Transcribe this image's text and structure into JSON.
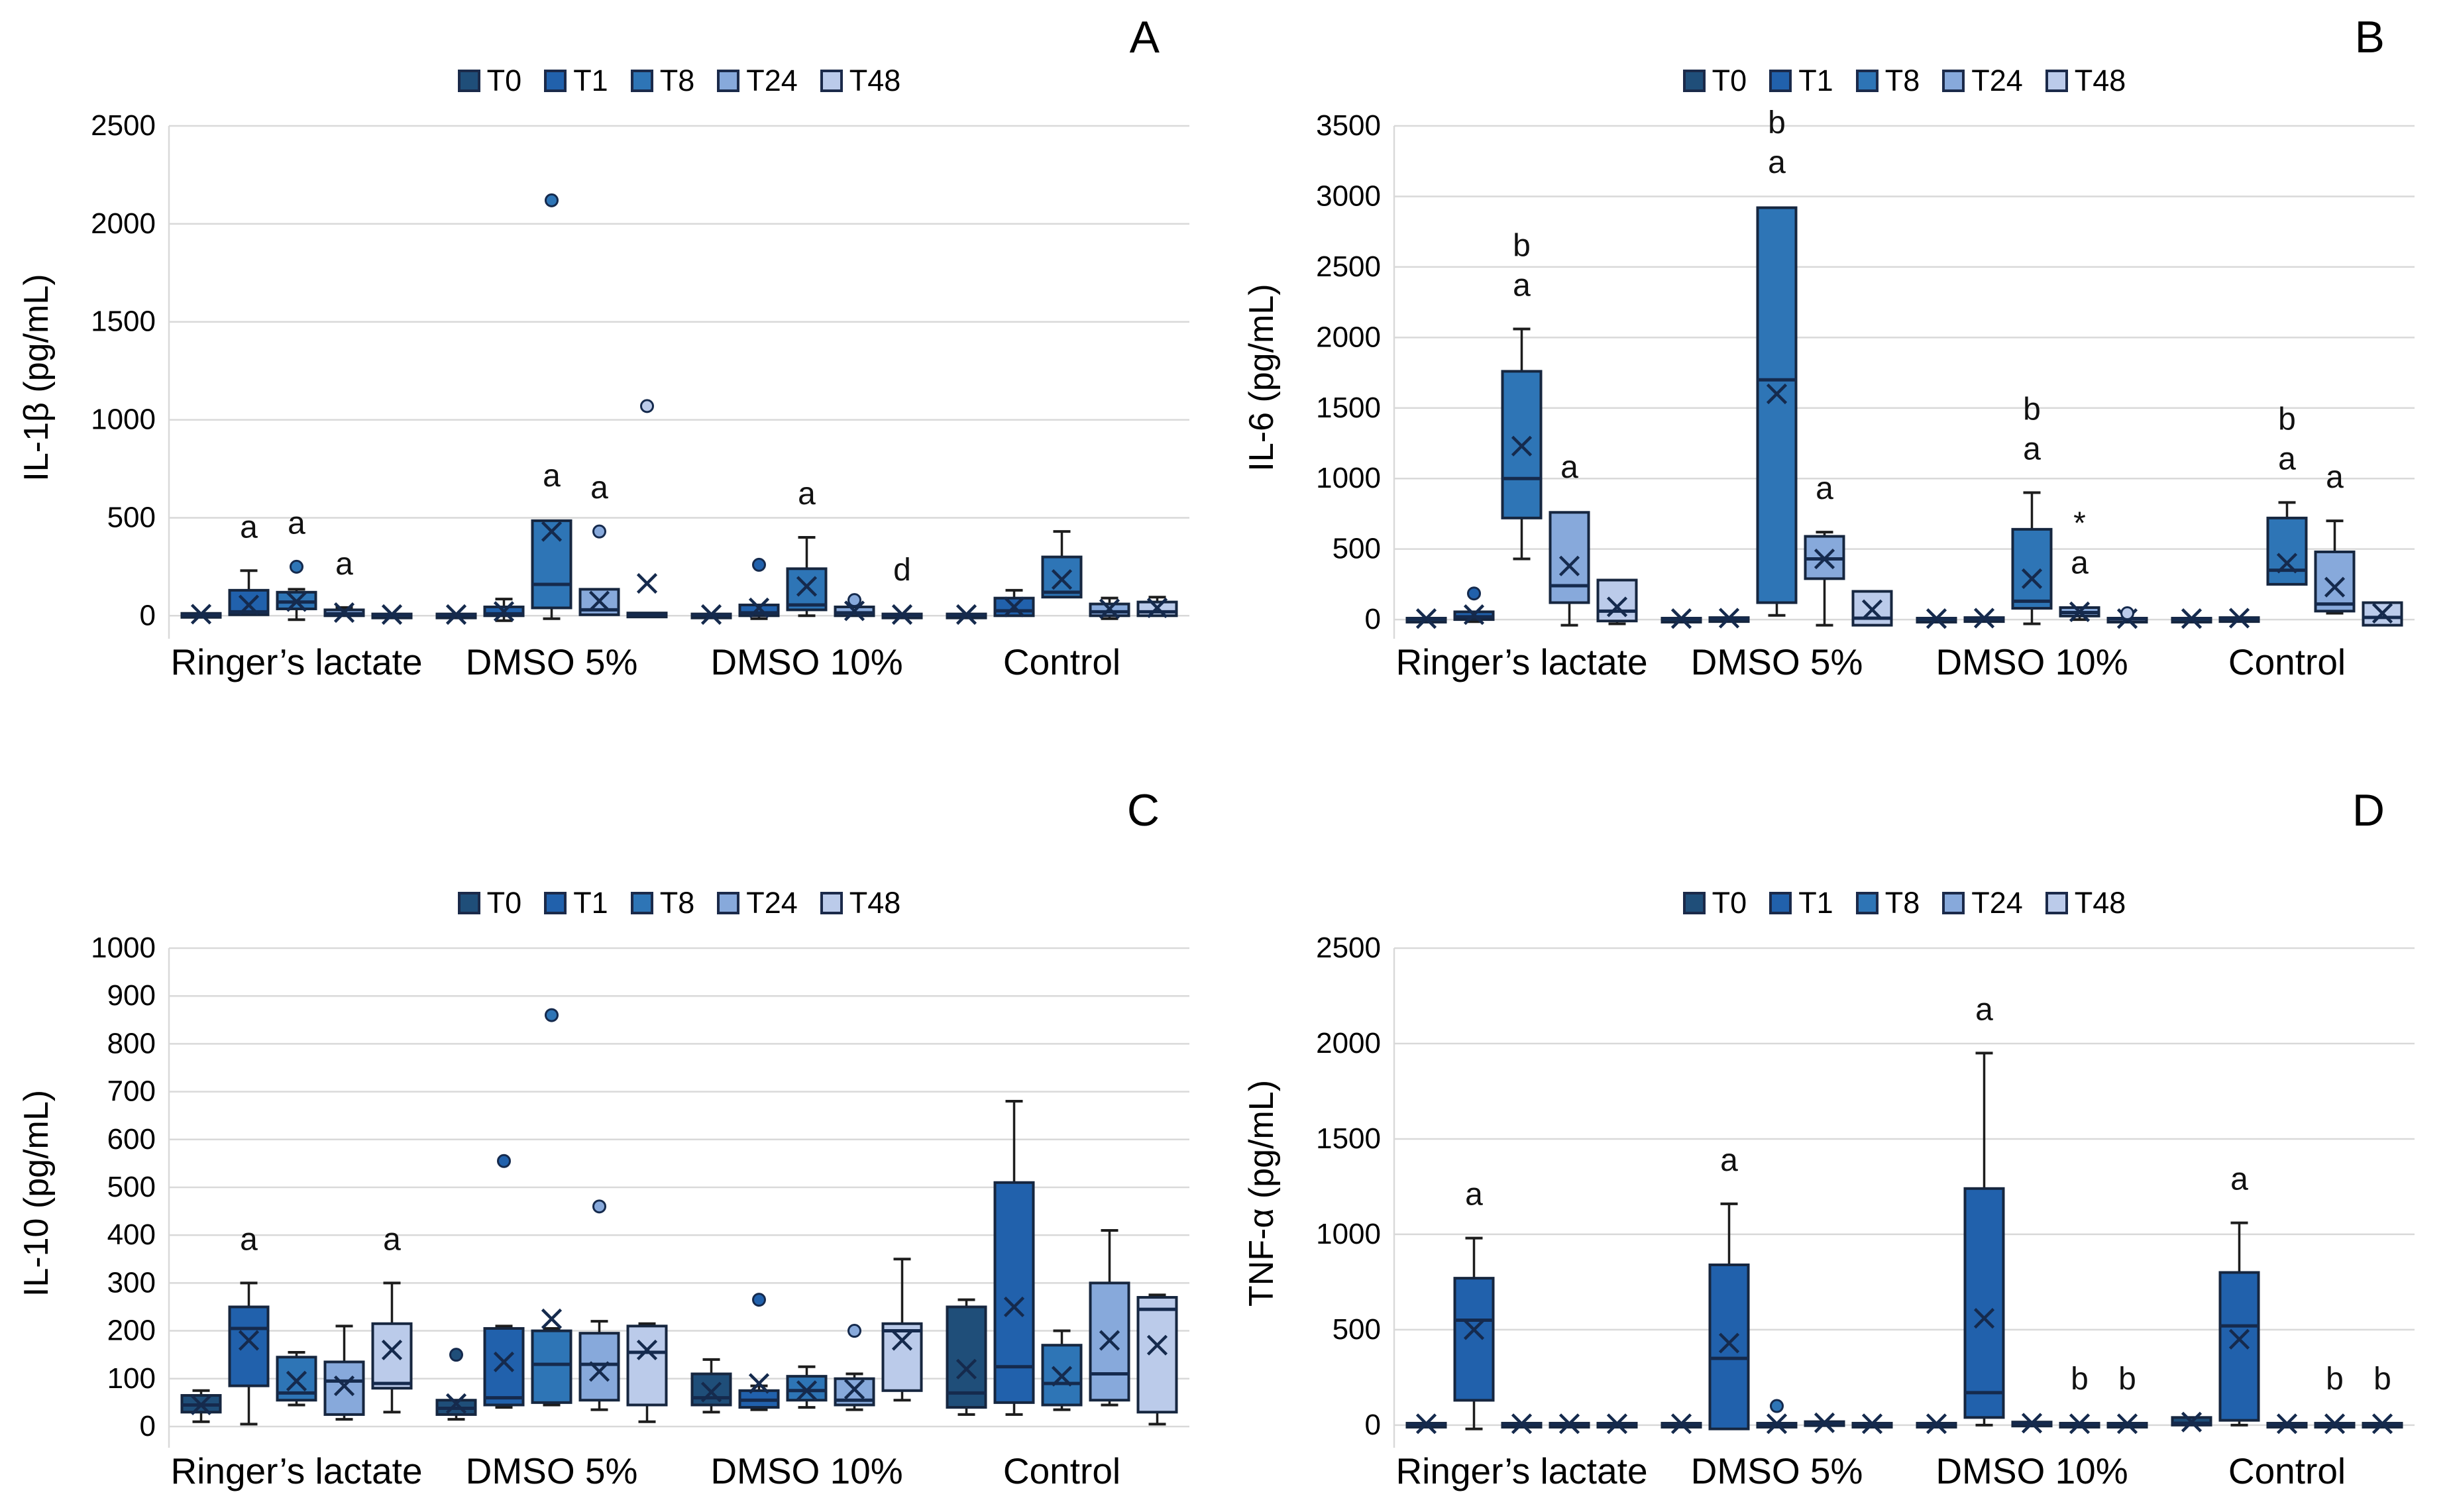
{
  "figure": {
    "background": "#ffffff"
  },
  "legend": {
    "series": [
      "T0",
      "T1",
      "T8",
      "T24",
      "T48"
    ],
    "colors": [
      "#1F4E79",
      "#2161AC",
      "#2E75B6",
      "#87A9DB",
      "#BBCBEA"
    ],
    "border_color": "#1B2A4A",
    "marker_color": "#152A4D",
    "gridline_color": "#D9D9D9"
  },
  "chart_data": {
    "type": "box",
    "groups": [
      "Ringer’s lactate",
      "DMSO 5%",
      "DMSO 10%",
      "Control"
    ],
    "series": [
      "T0",
      "T1",
      "T8",
      "T24",
      "T48"
    ],
    "box_format": [
      "whisker_low",
      "q1",
      "median",
      "q3",
      "whisker_high",
      "mean",
      "outliers",
      "labels"
    ],
    "panels": [
      {
        "letter": "A",
        "ylabel": "IL-1β (pg/mL)",
        "ylim": [
          0,
          2500
        ],
        "ytick": 500,
        "boxes": [
          [
            [
              0,
              0,
              4,
              12,
              18,
              8,
              [],
              []
            ],
            [
              0,
              5,
              20,
              130,
              230,
              55,
              [],
              [
                "a"
              ]
            ],
            [
              -20,
              35,
              70,
              120,
              135,
              72,
              [
                250
              ],
              [
                "a"
              ]
            ],
            [
              0,
              0,
              10,
              30,
              42,
              16,
              [],
              [
                "a"
              ]
            ],
            [
              0,
              0,
              3,
              9,
              12,
              6,
              [],
              []
            ]
          ],
          [
            [
              0,
              0,
              3,
              9,
              12,
              6,
              [],
              []
            ],
            [
              -25,
              0,
              10,
              45,
              85,
              22,
              [],
              []
            ],
            [
              -15,
              40,
              160,
              485,
              492,
              430,
              [
                2120
              ],
              [
                "a"
              ]
            ],
            [
              0,
              5,
              30,
              135,
              142,
              75,
              [
                430
              ],
              [
                "a"
              ]
            ],
            [
              0,
              0,
              5,
              14,
              18,
              165,
              [
                1070
              ],
              []
            ]
          ],
          [
            [
              0,
              0,
              3,
              9,
              12,
              6,
              [],
              []
            ],
            [
              -15,
              0,
              15,
              55,
              62,
              40,
              [
                260
              ],
              []
            ],
            [
              0,
              30,
              55,
              240,
              400,
              150,
              [],
              [
                "a"
              ]
            ],
            [
              -10,
              0,
              15,
              45,
              52,
              25,
              [
                80
              ],
              []
            ],
            [
              0,
              0,
              3,
              9,
              12,
              6,
              [],
              [
                "d"
              ]
            ]
          ],
          [
            [
              0,
              0,
              3,
              9,
              12,
              6,
              [],
              []
            ],
            [
              -10,
              0,
              25,
              90,
              130,
              45,
              [],
              []
            ],
            [
              85,
              95,
              120,
              300,
              430,
              185,
              [],
              []
            ],
            [
              -15,
              0,
              20,
              60,
              90,
              35,
              [],
              []
            ],
            [
              0,
              0,
              20,
              70,
              95,
              40,
              [],
              []
            ]
          ]
        ]
      },
      {
        "letter": "B",
        "ylabel": "IL-6 (pg/mL)",
        "ylim": [
          0,
          3500
        ],
        "ytick": 500,
        "boxes": [
          [
            [
              0,
              0,
              4,
              10,
              14,
              7,
              [],
              []
            ],
            [
              -15,
              0,
              20,
              55,
              65,
              35,
              [
                185
              ],
              []
            ],
            [
              430,
              720,
              1000,
              1760,
              2060,
              1230,
              [],
              [
                "b",
                "a"
              ]
            ],
            [
              -40,
              120,
              240,
              760,
              770,
              380,
              [],
              [
                "a"
              ]
            ],
            [
              -30,
              -10,
              60,
              280,
              288,
              90,
              [],
              []
            ]
          ],
          [
            [
              0,
              0,
              4,
              10,
              14,
              7,
              [],
              []
            ],
            [
              0,
              0,
              6,
              14,
              18,
              10,
              [],
              []
            ],
            [
              30,
              120,
              1700,
              2920,
              2932,
              1600,
              [],
              [
                "b",
                "a"
              ]
            ],
            [
              -40,
              290,
              430,
              590,
              620,
              430,
              [],
              [
                "a"
              ]
            ],
            [
              -45,
              -40,
              10,
              200,
              208,
              70,
              [],
              []
            ]
          ],
          [
            [
              0,
              0,
              4,
              10,
              14,
              7,
              [],
              []
            ],
            [
              0,
              0,
              6,
              14,
              18,
              10,
              [],
              []
            ],
            [
              -30,
              80,
              130,
              640,
              900,
              290,
              [],
              [
                "b",
                "a"
              ]
            ],
            [
              0,
              25,
              50,
              85,
              92,
              55,
              [],
              [
                "*",
                "a"
              ]
            ],
            [
              0,
              0,
              4,
              10,
              14,
              7,
              [
                45
              ],
              []
            ]
          ],
          [
            [
              0,
              0,
              4,
              10,
              14,
              7,
              [],
              []
            ],
            [
              0,
              0,
              6,
              14,
              18,
              10,
              [],
              []
            ],
            [
              240,
              250,
              350,
              720,
              830,
              400,
              [],
              [
                "b",
                "a"
              ]
            ],
            [
              45,
              60,
              110,
              480,
              700,
              230,
              [],
              [
                "a"
              ]
            ],
            [
              -45,
              -40,
              15,
              120,
              128,
              45,
              [],
              []
            ]
          ]
        ]
      },
      {
        "letter": "C",
        "ylabel": "IL-10 (pg/mL)",
        "ylim": [
          0,
          1000
        ],
        "ytick": 100,
        "boxes": [
          [
            [
              10,
              30,
              45,
              65,
              75,
              45,
              [],
              []
            ],
            [
              5,
              85,
              205,
              250,
              300,
              180,
              [],
              [
                "a"
              ]
            ],
            [
              45,
              55,
              70,
              145,
              155,
              95,
              [],
              []
            ],
            [
              15,
              25,
              95,
              135,
              210,
              85,
              [],
              []
            ],
            [
              30,
              80,
              90,
              215,
              300,
              160,
              [],
              [
                "a"
              ]
            ]
          ],
          [
            [
              15,
              25,
              38,
              55,
              58,
              48,
              [
                150
              ],
              []
            ],
            [
              40,
              45,
              60,
              205,
              210,
              135,
              [
                555
              ],
              []
            ],
            [
              45,
              50,
              130,
              200,
              205,
              225,
              [
                860
              ],
              []
            ],
            [
              35,
              55,
              130,
              195,
              220,
              115,
              [
                460
              ],
              []
            ],
            [
              10,
              45,
              155,
              210,
              215,
              160,
              [],
              []
            ]
          ],
          [
            [
              30,
              45,
              60,
              110,
              140,
              72,
              [],
              []
            ],
            [
              35,
              40,
              55,
              75,
              85,
              90,
              [
                265
              ],
              []
            ],
            [
              40,
              55,
              75,
              105,
              125,
              75,
              [],
              []
            ],
            [
              35,
              45,
              55,
              100,
              110,
              78,
              [
                200
              ],
              []
            ],
            [
              55,
              75,
              200,
              215,
              350,
              180,
              [],
              []
            ]
          ],
          [
            [
              25,
              40,
              70,
              250,
              265,
              120,
              [],
              []
            ],
            [
              25,
              50,
              125,
              510,
              680,
              250,
              [],
              []
            ],
            [
              35,
              45,
              90,
              170,
              200,
              105,
              [],
              []
            ],
            [
              45,
              55,
              110,
              300,
              410,
              180,
              [],
              []
            ],
            [
              5,
              30,
              245,
              270,
              275,
              170,
              [],
              []
            ]
          ]
        ]
      },
      {
        "letter": "D",
        "ylabel": "TNF-α (pg/mL)",
        "ylim": [
          0,
          2500
        ],
        "ytick": 500,
        "boxes": [
          [
            [
              0,
              0,
              4,
              10,
              14,
              7,
              [],
              []
            ],
            [
              -20,
              130,
              550,
              770,
              980,
              500,
              [],
              [
                "a"
              ]
            ],
            [
              0,
              0,
              4,
              10,
              14,
              7,
              [],
              []
            ],
            [
              0,
              0,
              4,
              10,
              14,
              7,
              [],
              []
            ],
            [
              0,
              0,
              4,
              10,
              14,
              7,
              [],
              []
            ]
          ],
          [
            [
              0,
              0,
              4,
              10,
              14,
              7,
              [],
              []
            ],
            [
              -30,
              -20,
              350,
              840,
              1160,
              430,
              [],
              [
                "a"
              ]
            ],
            [
              0,
              0,
              4,
              10,
              14,
              7,
              [
                100
              ],
              []
            ],
            [
              0,
              0,
              8,
              18,
              22,
              12,
              [],
              []
            ],
            [
              0,
              0,
              4,
              10,
              14,
              7,
              [],
              []
            ]
          ],
          [
            [
              0,
              0,
              4,
              10,
              14,
              7,
              [],
              []
            ],
            [
              0,
              40,
              170,
              1240,
              1950,
              560,
              [],
              [
                "a"
              ]
            ],
            [
              0,
              0,
              8,
              16,
              20,
              10,
              [],
              []
            ],
            [
              0,
              0,
              4,
              10,
              14,
              7,
              [],
              [
                "b"
              ]
            ],
            [
              0,
              0,
              4,
              10,
              14,
              7,
              [],
              [
                "b"
              ]
            ]
          ],
          [
            [
              0,
              0,
              10,
              40,
              48,
              16,
              [],
              []
            ],
            [
              0,
              25,
              520,
              800,
              1060,
              450,
              [],
              [
                "a"
              ]
            ],
            [
              0,
              0,
              4,
              10,
              14,
              7,
              [],
              []
            ],
            [
              0,
              0,
              4,
              10,
              14,
              7,
              [],
              [
                "b"
              ]
            ],
            [
              0,
              0,
              4,
              10,
              14,
              7,
              [],
              [
                "b"
              ]
            ]
          ]
        ]
      }
    ]
  }
}
